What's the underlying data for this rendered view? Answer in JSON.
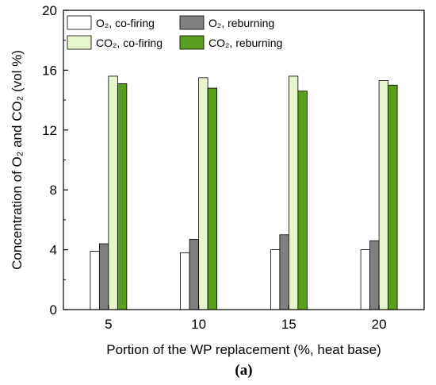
{
  "chart_data": {
    "type": "bar",
    "categories": [
      "5",
      "10",
      "15",
      "20"
    ],
    "series": [
      {
        "name": "O₂, co-firing",
        "values": [
          3.9,
          3.8,
          4.0,
          4.0
        ],
        "color": "#ffffff"
      },
      {
        "name": "O₂, reburning",
        "values": [
          4.4,
          4.7,
          5.0,
          4.6
        ],
        "color": "#808080"
      },
      {
        "name": "CO₂, co-firing",
        "values": [
          15.6,
          15.5,
          15.6,
          15.3
        ],
        "color": "#e6f5cc"
      },
      {
        "name": "CO₂, reburning",
        "values": [
          15.1,
          14.8,
          14.6,
          15.0
        ],
        "color": "#5a9e1f"
      }
    ],
    "xlabel": "Portion of the WP replacement (%, heat base)",
    "ylabel": "Concentration of O₂ and CO₂ (vol %)",
    "ylim": [
      0,
      20
    ],
    "yticks": [
      "0",
      "4",
      "8",
      "12",
      "16",
      "20"
    ],
    "legend_position": "top",
    "grid": false,
    "panel_label": "(a)"
  }
}
